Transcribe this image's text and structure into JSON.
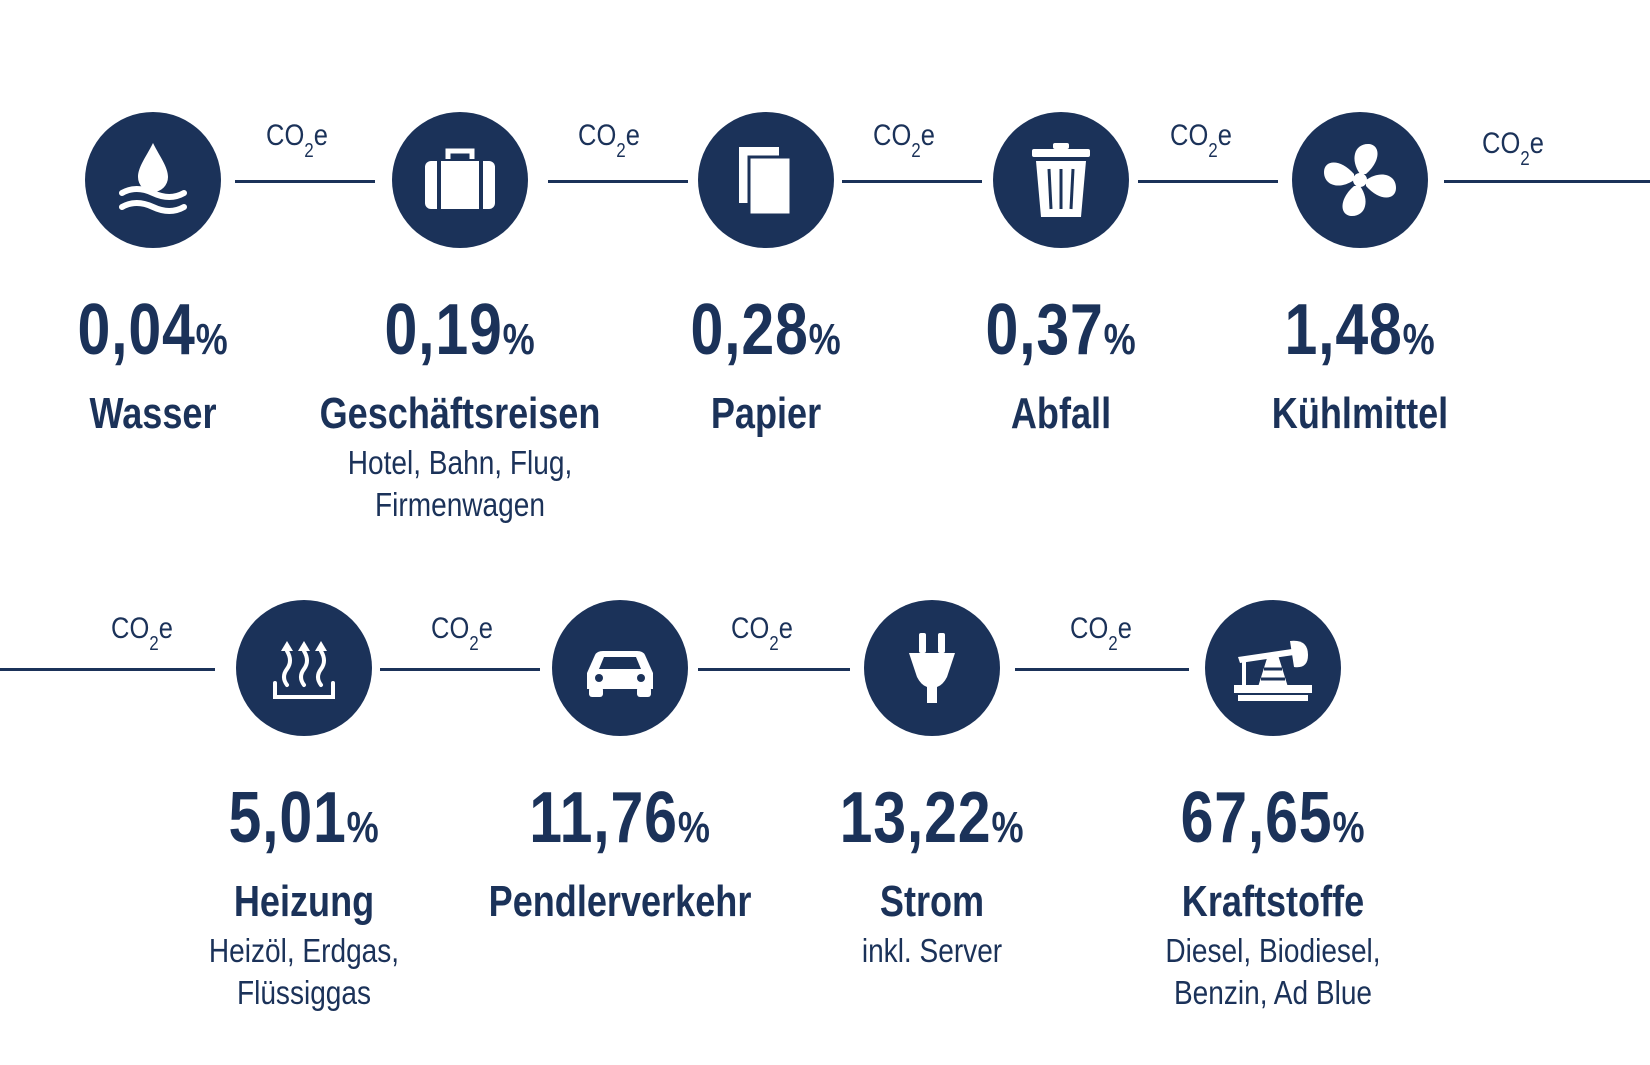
{
  "co2_label": {
    "prefix": "CO",
    "subscript": "2",
    "suffix": "e"
  },
  "row1": [
    {
      "icon": "water-drop-icon",
      "value": "0,04",
      "unit": "%",
      "label": "Wasser",
      "sub": []
    },
    {
      "icon": "suitcase-icon",
      "value": "0,19",
      "unit": "%",
      "label": "Geschäftsreisen",
      "sub": [
        "Hotel, Bahn, Flug,",
        "Firmenwagen"
      ]
    },
    {
      "icon": "paper-icon",
      "value": "0,28",
      "unit": "%",
      "label": "Papier",
      "sub": []
    },
    {
      "icon": "trash-can-icon",
      "value": "0,37",
      "unit": "%",
      "label": "Abfall",
      "sub": []
    },
    {
      "icon": "fan-icon",
      "value": "1,48",
      "unit": "%",
      "label": "Kühlmittel",
      "sub": []
    }
  ],
  "row2": [
    {
      "icon": "heating-icon",
      "value": "5,01",
      "unit": "%",
      "label": "Heizung",
      "sub": [
        "Heizöl, Erdgas,",
        "Flüssiggas"
      ]
    },
    {
      "icon": "car-icon",
      "value": "11,76",
      "unit": "%",
      "label": "Pendlerverkehr",
      "sub": []
    },
    {
      "icon": "plug-icon",
      "value": "13,22",
      "unit": "%",
      "label": "Strom",
      "sub": [
        "inkl. Server"
      ]
    },
    {
      "icon": "oil-pump-icon",
      "value": "67,65",
      "unit": "%",
      "label": "Kraftstoffe",
      "sub": [
        "Diesel, Biodiesel,",
        "Benzin, Ad Blue"
      ]
    }
  ],
  "colors": {
    "primary": "#1b3259",
    "background": "#ffffff"
  }
}
